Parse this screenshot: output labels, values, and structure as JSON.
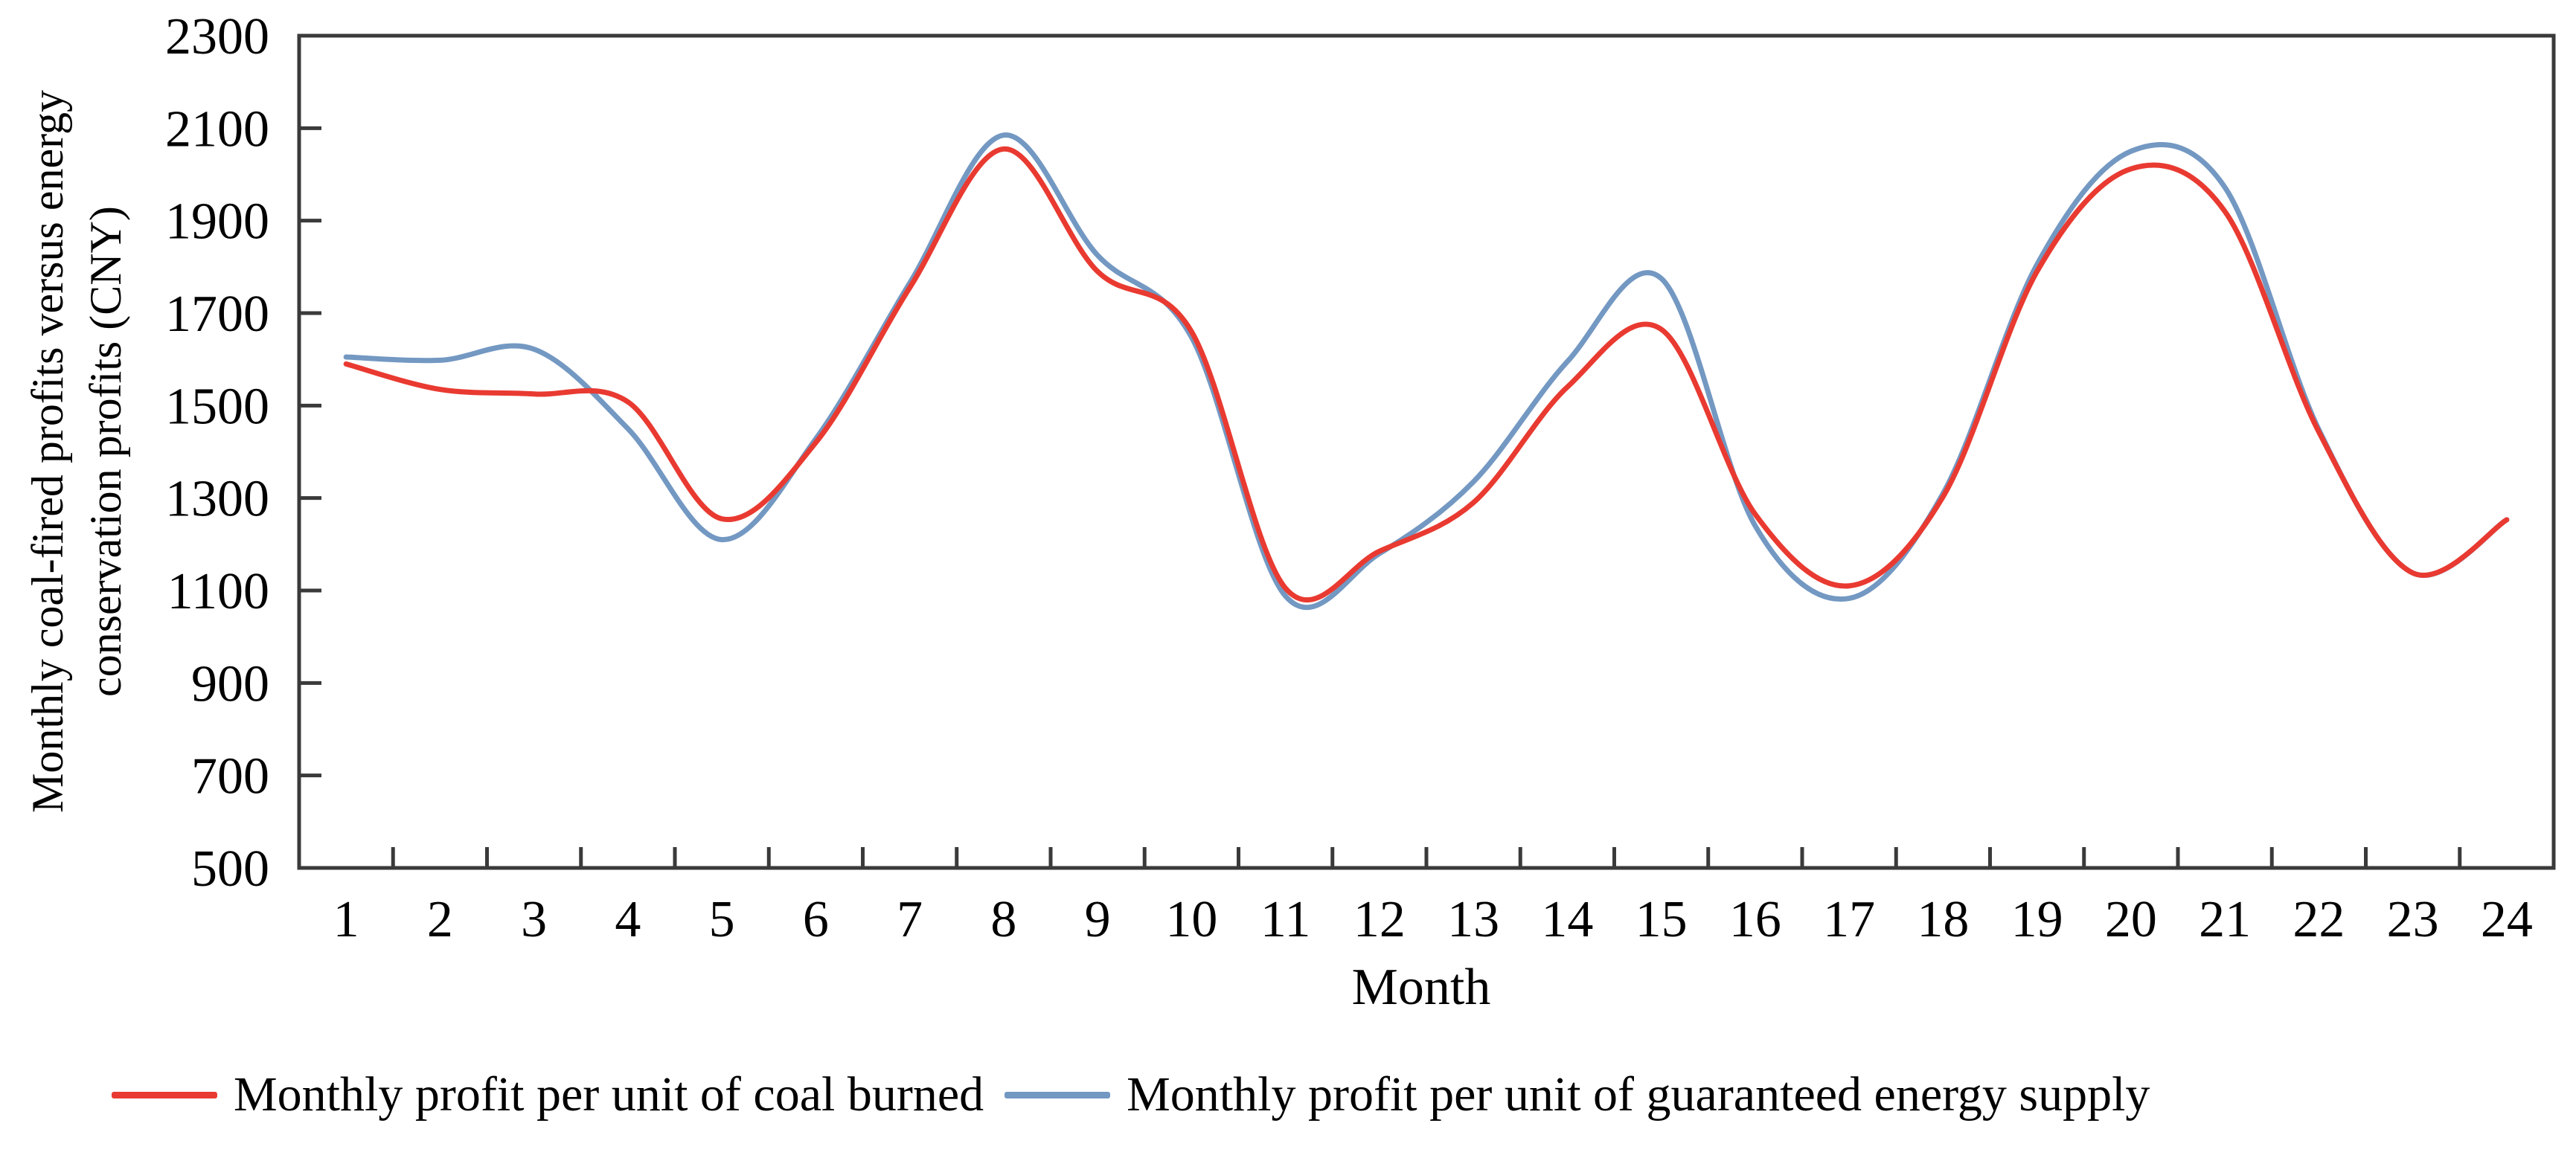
{
  "figure": {
    "y_axis_title_line1": "Monthly coal-fired profits versus energy",
    "y_axis_title_line2": "conservation profits (CNY)",
    "x_axis_title": "Month"
  },
  "chart_data": {
    "type": "line",
    "smooth": true,
    "grid": false,
    "legend_position": "bottom",
    "xlabel": "Month",
    "ylabel": "Monthly coal-fired profits versus energy conservation profits (CNY)",
    "ylim": [
      500,
      2300
    ],
    "yticks": [
      500,
      700,
      900,
      1100,
      1300,
      1500,
      1700,
      1900,
      2100,
      2300
    ],
    "x": [
      1,
      2,
      3,
      4,
      5,
      6,
      7,
      8,
      9,
      10,
      11,
      12,
      13,
      14,
      15,
      16,
      17,
      18,
      19,
      20,
      21,
      22,
      23,
      24
    ],
    "series": [
      {
        "name": "Monthly profit per unit of coal burned",
        "color": "#e93a31",
        "values": [
          1590,
          1535,
          1525,
          1508,
          1255,
          1420,
          1755,
          2055,
          1790,
          1660,
          1105,
          1185,
          1290,
          1540,
          1665,
          1265,
          1110,
          1303,
          1790,
          2012,
          1920,
          1443,
          1138,
          1253
        ]
      },
      {
        "name": "Monthly profit per unit of guaranteed energy supply",
        "color": "#7398c2",
        "values": [
          1605,
          1598,
          1622,
          1450,
          1210,
          1428,
          1765,
          2085,
          1825,
          1648,
          1088,
          1180,
          1335,
          1595,
          1775,
          1240,
          1083,
          1310,
          1805,
          2050,
          1972,
          1448,
          1138,
          1253
        ]
      }
    ]
  },
  "colors": {
    "axis": "#3a3a3a",
    "text": "#000000",
    "background": "#ffffff"
  }
}
